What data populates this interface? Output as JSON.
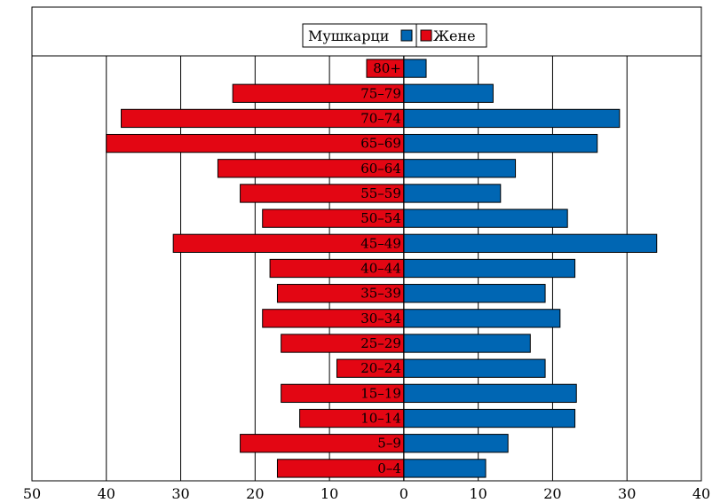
{
  "chart_data": {
    "type": "bar",
    "orientation": "horizontal",
    "categories": [
      "0–4",
      "5–9",
      "10–14",
      "15–19",
      "20–24",
      "25–29",
      "30–34",
      "35–39",
      "40–44",
      "45–49",
      "50–54",
      "55–59",
      "60–64",
      "65–69",
      "70–74",
      "75–79",
      "80+"
    ],
    "series": [
      {
        "name": "Мушкарци",
        "color": "#0066b3",
        "values": [
          11,
          14,
          23,
          23.2,
          19,
          17,
          21,
          19,
          23,
          34,
          22,
          13,
          15,
          26,
          29,
          12,
          3
        ]
      },
      {
        "name": "Жене",
        "color": "#e30613",
        "values": [
          17,
          22,
          14,
          16.5,
          9,
          16.5,
          19,
          17,
          18,
          31,
          19,
          22,
          25,
          40,
          38,
          23,
          5
        ]
      }
    ],
    "x_ticks": [
      "50",
      "40",
      "30",
      "20",
      "10",
      "0",
      "10",
      "20",
      "30",
      "40"
    ],
    "xlim": [
      -50,
      40
    ],
    "grid": true,
    "legend_position": "top-center"
  }
}
